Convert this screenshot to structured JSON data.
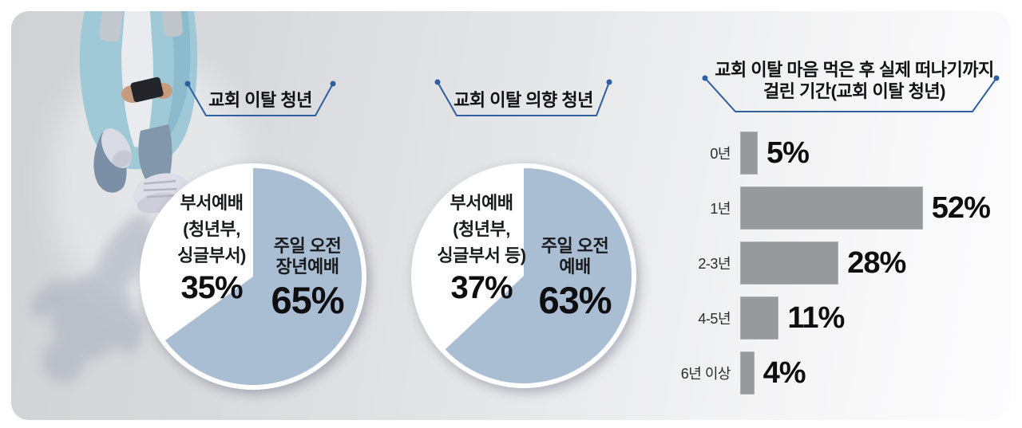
{
  "colors": {
    "panel_bg_left": "#d0d1d4",
    "panel_bg_right": "#fdfdfe",
    "accent_line": "#2e5f9e",
    "pie_fill": "#a9bdd3",
    "pie_secondary": "#ffffff",
    "bar_fill": "#97999c",
    "text": "#1a1b1d"
  },
  "decoration": {
    "person_photo": "top-down view of a young man walking while looking at his phone, casting a long shadow"
  },
  "chart_data": [
    {
      "type": "pie",
      "title": "교회 이탈 청년",
      "slices": [
        {
          "label": "주일 오전 장년예배",
          "label_lines": [
            "주일 오전",
            "장년예배"
          ],
          "value": 65,
          "value_label": "65%",
          "color": "#a9bdd3"
        },
        {
          "label": "부서예배(청년부, 싱글부서)",
          "label_lines": [
            "부서예배",
            "(청년부,",
            "싱글부서)"
          ],
          "value": 35,
          "value_label": "35%",
          "color": "#ffffff"
        }
      ]
    },
    {
      "type": "pie",
      "title": "교회 이탈 의향 청년",
      "slices": [
        {
          "label": "주일 오전 예배",
          "label_lines": [
            "주일 오전",
            "예배"
          ],
          "value": 63,
          "value_label": "63%",
          "color": "#a9bdd3"
        },
        {
          "label": "부서예배(청년부, 싱글부서 등)",
          "label_lines": [
            "부서예배",
            "(청년부,",
            "싱글부서 등)"
          ],
          "value": 37,
          "value_label": "37%",
          "color": "#ffffff"
        }
      ]
    },
    {
      "type": "bar",
      "orientation": "horizontal",
      "title": "교회 이탈 마음 먹은 후 실제 떠나기까지 걸린 기간(교회 이탈 청년)",
      "title_lines": [
        "교회 이탈 마음 먹은 후 실제 떠나기까지",
        "걸린 기간(교회 이탈 청년)"
      ],
      "categories": [
        "0년",
        "1년",
        "2-3년",
        "4-5년",
        "6년 이상"
      ],
      "values": [
        5,
        52,
        28,
        11,
        4
      ],
      "value_labels": [
        "5%",
        "52%",
        "28%",
        "11%",
        "4%"
      ],
      "xlim": [
        0,
        57
      ],
      "bar_color": "#97999c",
      "grid": false,
      "legend": false
    }
  ]
}
